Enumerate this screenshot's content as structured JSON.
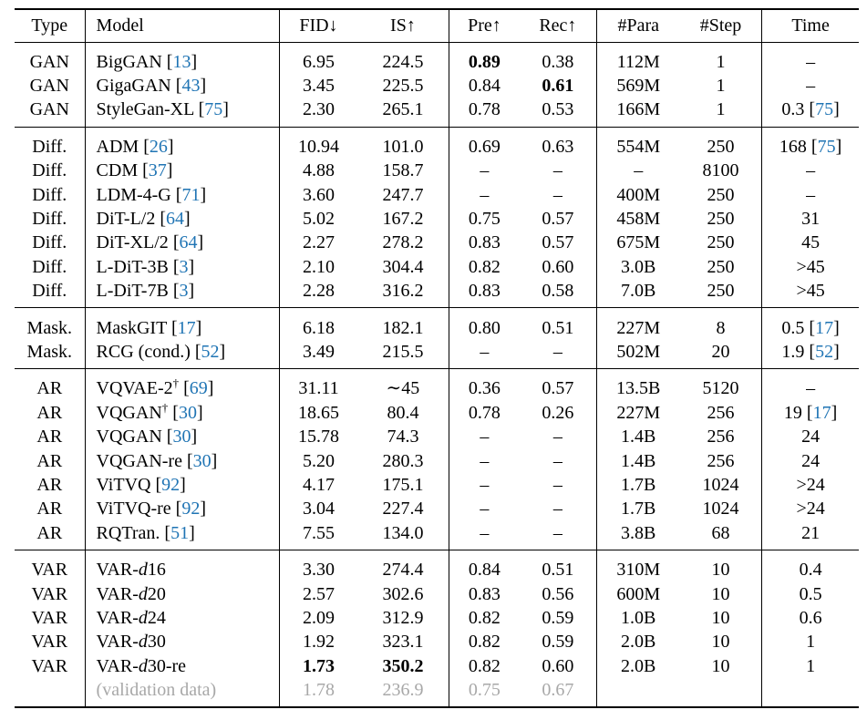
{
  "headers": {
    "type": "Type",
    "model": "Model",
    "fid": "FID↓",
    "is": "IS↑",
    "pre": "Pre↑",
    "rec": "Rec↑",
    "para": "#Para",
    "step": "#Step",
    "time": "Time"
  },
  "groups": [
    {
      "name": "GAN",
      "rows": [
        {
          "type": "GAN",
          "model": "BigGAN",
          "ref": "13",
          "fid": "6.95",
          "is": "224.5",
          "pre": "0.89",
          "rec": "0.38",
          "para": "112M",
          "step": "1",
          "time": "–",
          "bold": [
            "pre"
          ]
        },
        {
          "type": "GAN",
          "model": "GigaGAN",
          "ref": "43",
          "fid": "3.45",
          "is": "225.5",
          "pre": "0.84",
          "rec": "0.61",
          "para": "569M",
          "step": "1",
          "time": "–",
          "bold": [
            "rec"
          ]
        },
        {
          "type": "GAN",
          "model": "StyleGan-XL",
          "ref": "75",
          "fid": "2.30",
          "is": "265.1",
          "pre": "0.78",
          "rec": "0.53",
          "para": "166M",
          "step": "1",
          "time": "0.3",
          "time_ref": "75"
        }
      ]
    },
    {
      "name": "Diff.",
      "rows": [
        {
          "type": "Diff.",
          "model": "ADM",
          "ref": "26",
          "fid": "10.94",
          "is": "101.0",
          "pre": "0.69",
          "rec": "0.63",
          "para": "554M",
          "step": "250",
          "time": "168",
          "time_ref": "75"
        },
        {
          "type": "Diff.",
          "model": "CDM",
          "ref": "37",
          "fid": "4.88",
          "is": "158.7",
          "pre": "–",
          "rec": "–",
          "para": "–",
          "step": "8100",
          "time": "–"
        },
        {
          "type": "Diff.",
          "model": "LDM-4-G",
          "ref": "71",
          "fid": "3.60",
          "is": "247.7",
          "pre": "–",
          "rec": "–",
          "para": "400M",
          "step": "250",
          "time": "–"
        },
        {
          "type": "Diff.",
          "model": "DiT-L/2",
          "ref": "64",
          "fid": "5.02",
          "is": "167.2",
          "pre": "0.75",
          "rec": "0.57",
          "para": "458M",
          "step": "250",
          "time": "31"
        },
        {
          "type": "Diff.",
          "model": "DiT-XL/2",
          "ref": "64",
          "fid": "2.27",
          "is": "278.2",
          "pre": "0.83",
          "rec": "0.57",
          "para": "675M",
          "step": "250",
          "time": "45"
        },
        {
          "type": "Diff.",
          "model": "L-DiT-3B",
          "ref": "3",
          "fid": "2.10",
          "is": "304.4",
          "pre": "0.82",
          "rec": "0.60",
          "para": "3.0B",
          "step": "250",
          "time": ">45"
        },
        {
          "type": "Diff.",
          "model": "L-DiT-7B",
          "ref": "3",
          "fid": "2.28",
          "is": "316.2",
          "pre": "0.83",
          "rec": "0.58",
          "para": "7.0B",
          "step": "250",
          "time": ">45"
        }
      ]
    },
    {
      "name": "Mask.",
      "rows": [
        {
          "type": "Mask.",
          "model": "MaskGIT",
          "ref": "17",
          "fid": "6.18",
          "is": "182.1",
          "pre": "0.80",
          "rec": "0.51",
          "para": "227M",
          "step": "8",
          "time": "0.5",
          "time_ref": "17"
        },
        {
          "type": "Mask.",
          "model": "RCG (cond.)",
          "ref": "52",
          "fid": "3.49",
          "is": "215.5",
          "pre": "–",
          "rec": "–",
          "para": "502M",
          "step": "20",
          "time": "1.9",
          "time_ref": "52"
        }
      ]
    },
    {
      "name": "AR",
      "rows": [
        {
          "type": "AR",
          "model": "VQVAE-2",
          "sup": "†",
          "ref": "69",
          "fid": "31.11",
          "is": "∼45",
          "pre": "0.36",
          "rec": "0.57",
          "para": "13.5B",
          "step": "5120",
          "time": "–"
        },
        {
          "type": "AR",
          "model": "VQGAN",
          "sup": "†",
          "ref": "30",
          "fid": "18.65",
          "is": "80.4",
          "pre": "0.78",
          "rec": "0.26",
          "para": "227M",
          "step": "256",
          "time": "19",
          "time_ref": "17"
        },
        {
          "type": "AR",
          "model": "VQGAN",
          "ref": "30",
          "fid": "15.78",
          "is": "74.3",
          "pre": "–",
          "rec": "–",
          "para": "1.4B",
          "step": "256",
          "time": "24"
        },
        {
          "type": "AR",
          "model": "VQGAN-re",
          "ref": "30",
          "fid": "5.20",
          "is": "280.3",
          "pre": "–",
          "rec": "–",
          "para": "1.4B",
          "step": "256",
          "time": "24"
        },
        {
          "type": "AR",
          "model": "ViTVQ",
          "ref": "92",
          "fid": "4.17",
          "is": "175.1",
          "pre": "–",
          "rec": "–",
          "para": "1.7B",
          "step": "1024",
          "time": ">24"
        },
        {
          "type": "AR",
          "model": "ViTVQ-re",
          "ref": "92",
          "fid": "3.04",
          "is": "227.4",
          "pre": "–",
          "rec": "–",
          "para": "1.7B",
          "step": "1024",
          "time": ">24"
        },
        {
          "type": "AR",
          "model": "RQTran.",
          "ref": "51",
          "fid": "7.55",
          "is": "134.0",
          "pre": "–",
          "rec": "–",
          "para": "3.8B",
          "step": "68",
          "time": "21"
        }
      ]
    },
    {
      "name": "VAR",
      "rows": [
        {
          "type": "VAR",
          "model": "VAR-",
          "model_it": "d",
          "model_tail": "16",
          "fid": "3.30",
          "is": "274.4",
          "pre": "0.84",
          "rec": "0.51",
          "para": "310M",
          "step": "10",
          "time": "0.4"
        },
        {
          "type": "VAR",
          "model": "VAR-",
          "model_it": "d",
          "model_tail": "20",
          "fid": "2.57",
          "is": "302.6",
          "pre": "0.83",
          "rec": "0.56",
          "para": "600M",
          "step": "10",
          "time": "0.5"
        },
        {
          "type": "VAR",
          "model": "VAR-",
          "model_it": "d",
          "model_tail": "24",
          "fid": "2.09",
          "is": "312.9",
          "pre": "0.82",
          "rec": "0.59",
          "para": "1.0B",
          "step": "10",
          "time": "0.6"
        },
        {
          "type": "VAR",
          "model": "VAR-",
          "model_it": "d",
          "model_tail": "30",
          "fid": "1.92",
          "is": "323.1",
          "pre": "0.82",
          "rec": "0.59",
          "para": "2.0B",
          "step": "10",
          "time": "1"
        },
        {
          "type": "VAR",
          "model": "VAR-",
          "model_it": "d",
          "model_tail": "30-re",
          "fid": "1.73",
          "is": "350.2",
          "pre": "0.82",
          "rec": "0.60",
          "para": "2.0B",
          "step": "10",
          "time": "1",
          "bold": [
            "fid",
            "is"
          ]
        },
        {
          "type": "",
          "model": "(validation data)",
          "fid": "1.78",
          "is": "236.9",
          "pre": "0.75",
          "rec": "0.67",
          "para": "",
          "step": "",
          "time": "",
          "gray": true
        }
      ]
    }
  ]
}
